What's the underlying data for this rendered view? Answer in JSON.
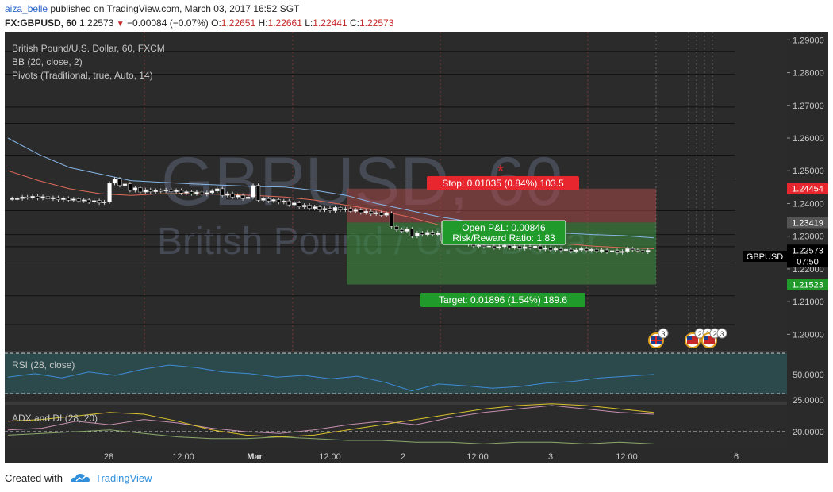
{
  "header": {
    "user": "aiza_belle",
    "published_text": "published on TradingView.com, March 03, 2017 16:52 SGT",
    "symbol": "FX:GBPUSD, 60",
    "last": "1.22573",
    "change": "−0.00084 (−0.07%)",
    "o_label": "O:",
    "o": "1.22651",
    "h_label": "H:",
    "h": "1.22661",
    "l_label": "L:",
    "l": "1.22441",
    "c_label": "C:",
    "c": "1.22573"
  },
  "legend": {
    "instrument": "British Pound/U.S. Dollar, 60, FXCM",
    "bb": "BB (20, close, 2)",
    "pivots": "Pivots (Traditional, true, Auto, 14)"
  },
  "watermark": {
    "line1": "GBPUSD, 60",
    "line2": "British Pound / U.S. Dollar"
  },
  "position": {
    "stop_text": "Stop: 0.01035 (0.84%) 103.5",
    "target_text": "Target: 0.01896 (1.54%) 189.6",
    "pnl_text": "Open P&L: 0.00846",
    "rr_text": "Risk/Reward Ratio: 1.83",
    "stop_price": 1.24454,
    "entry_price": 1.23419,
    "target_price": 1.21523
  },
  "price_axis": {
    "ticks": [
      "1.29000",
      "1.28000",
      "1.27000",
      "1.26000",
      "1.25000",
      "1.24000",
      "1.23000",
      "1.22000",
      "1.21000",
      "1.20000"
    ],
    "tag_stop": "1.24454",
    "tag_entry": "1.23419",
    "tag_last": "1.22573",
    "tag_symbol": "GBPUSD",
    "tag_countdown": "07:50",
    "tag_target": "1.21523"
  },
  "time_axis": {
    "labels": [
      "28",
      "12:00",
      "Mar",
      "12:00",
      "2",
      "12:00",
      "3",
      "12:00",
      "6"
    ]
  },
  "indicators": {
    "rsi_label": "RSI (28, close)",
    "rsi_ticks": [
      "50.0000",
      "25.0000"
    ],
    "adx_label": "ADX and DI (28, 20)",
    "adx_ticks": [
      "20.0000"
    ]
  },
  "events": {
    "e1": "3",
    "e2": "2",
    "e3": "3",
    "e4": "2",
    "e5": "3"
  },
  "footer": {
    "created_with": "Created with",
    "brand": "TradingView"
  },
  "colors": {
    "background": "#3a3a3a",
    "bull_candle": "#ffffff",
    "bear_candle": "#000000",
    "bb_upper": "#87b6e6",
    "bb_basis": "#e06a5a",
    "stop_zone": "#a84848",
    "target_zone": "#3e8a3e",
    "rsi_line": "#3e8bd6",
    "adx_line": "#d8c22a",
    "di_plus": "#c58fb0",
    "di_minus": "#8aa86a"
  },
  "chart_data": {
    "type": "line",
    "title": "British Pound/U.S. Dollar, 60, FXCM",
    "ylim": [
      1.195,
      1.2925
    ],
    "y_ticks": [
      1.29,
      1.28,
      1.27,
      1.26,
      1.25,
      1.24,
      1.23,
      1.22,
      1.21,
      1.2
    ],
    "pivot_levels": [
      1.2865,
      1.2795,
      1.2695,
      1.2645,
      1.2548,
      1.2475,
      1.2378,
      1.2305,
      1.2268,
      1.2218,
      1.2118,
      1.203
    ],
    "candles": [
      1.2415,
      1.2415,
      1.242,
      1.2418,
      1.2422,
      1.2416,
      1.2421,
      1.2414,
      1.2418,
      1.2412,
      1.2416,
      1.241,
      1.2414,
      1.2408,
      1.2411,
      1.2405,
      1.2409,
      1.2402,
      1.2405,
      1.2462,
      1.2475,
      1.2455,
      1.246,
      1.244,
      1.2448,
      1.2435,
      1.2442,
      1.2436,
      1.244,
      1.2438,
      1.2442,
      1.2436,
      1.244,
      1.2432,
      1.2436,
      1.243,
      1.2435,
      1.2428,
      1.2433,
      1.2438,
      1.2445,
      1.2425,
      1.243,
      1.242,
      1.2425,
      1.2415,
      1.242,
      1.2455,
      1.241,
      1.2415,
      1.2408,
      1.2412,
      1.2404,
      1.2408,
      1.2396,
      1.2402,
      1.239,
      1.2395,
      1.2385,
      1.239,
      1.238,
      1.2385,
      1.2378,
      1.2388,
      1.238,
      1.2384,
      1.2376,
      1.238,
      1.2372,
      1.2376,
      1.2368,
      1.2372,
      1.2364,
      1.237,
      1.233,
      1.232,
      1.2315,
      1.2322,
      1.23,
      1.231,
      1.2305,
      1.2312,
      1.2305,
      1.231,
      1.2285,
      1.229,
      1.2282,
      1.2288,
      1.228,
      1.2275,
      1.227,
      1.2272,
      1.2268,
      1.227,
      1.2265,
      1.2268,
      1.2272,
      1.2265,
      1.227,
      1.2262,
      1.2268,
      1.2265,
      1.227,
      1.226,
      1.2265,
      1.2258,
      1.2262,
      1.2256,
      1.226,
      1.2254,
      1.2258,
      1.2262,
      1.2256,
      1.226,
      1.2254,
      1.2258,
      1.2252,
      1.2256,
      1.225,
      1.2254,
      1.2262,
      1.2258,
      1.2256,
      1.2252,
      1.2257
    ],
    "bb_upper": [
      1.26,
      1.255,
      1.251,
      1.249,
      1.247,
      1.2465,
      1.246,
      1.2456,
      1.2452,
      1.245,
      1.244,
      1.2425,
      1.24,
      1.238,
      1.236,
      1.2345,
      1.2332,
      1.232,
      1.231,
      1.2305,
      1.2302,
      1.2295
    ],
    "bb_basis": [
      1.25,
      1.247,
      1.2445,
      1.243,
      1.2425,
      1.243,
      1.243,
      1.2428,
      1.2425,
      1.242,
      1.241,
      1.2395,
      1.238,
      1.236,
      1.2335,
      1.2315,
      1.23,
      1.2288,
      1.2278,
      1.227,
      1.2265,
      1.2262
    ],
    "rsi": [
      46,
      50,
      45,
      52,
      48,
      55,
      60,
      57,
      52,
      50,
      46,
      48,
      44,
      47,
      40,
      30,
      38,
      36,
      33,
      35,
      39,
      41,
      45,
      47,
      49
    ],
    "adx": [
      26,
      27,
      29,
      31,
      30,
      26,
      21,
      18,
      17,
      18,
      21,
      24,
      27,
      30,
      33,
      35,
      36,
      35,
      33,
      31
    ],
    "di_plus": [
      21,
      22,
      26,
      24,
      27,
      25,
      22,
      20,
      19,
      21,
      24,
      26,
      24,
      28,
      31,
      33,
      35,
      33,
      31,
      30
    ],
    "di_minus": [
      18,
      19,
      20,
      21,
      19,
      17,
      16,
      16,
      17,
      16,
      15,
      15,
      14,
      14,
      13,
      14,
      14,
      13,
      14,
      13
    ]
  }
}
